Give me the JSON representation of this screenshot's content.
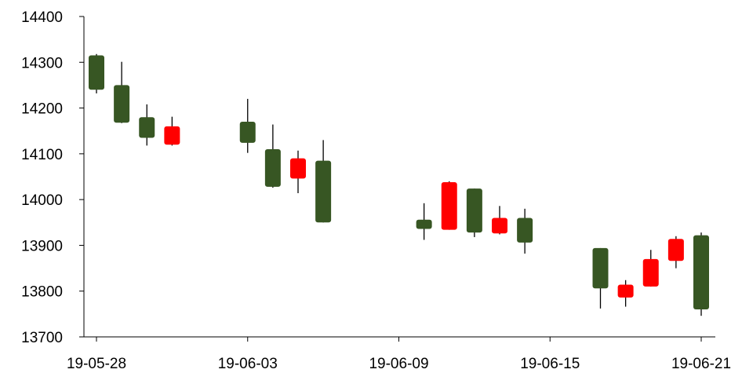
{
  "chart_data": {
    "type": "candlestick",
    "title": "",
    "xlabel": "",
    "ylabel": "",
    "ylim": [
      13700,
      14400
    ],
    "y_ticks": [
      "13700",
      "13800",
      "13900",
      "14000",
      "14100",
      "14200",
      "14300",
      "14400"
    ],
    "x_range": [
      "19-05-28",
      "19-06-21"
    ],
    "x_ticks": [
      "19-05-28",
      "19-06-03",
      "19-06-09",
      "19-06-15",
      "19-06-21"
    ],
    "grid": false,
    "colors": {
      "up": "#ff0000",
      "down": "#375623",
      "wick": "#000000",
      "axis": "#000000"
    },
    "candles": [
      {
        "date": "19-05-28",
        "open": 14315,
        "high": 14318,
        "low": 14232,
        "close": 14240
      },
      {
        "date": "19-05-29",
        "open": 14250,
        "high": 14301,
        "low": 14167,
        "close": 14168
      },
      {
        "date": "19-05-30",
        "open": 14180,
        "high": 14208,
        "low": 14118,
        "close": 14135
      },
      {
        "date": "19-05-31",
        "open": 14120,
        "high": 14181,
        "low": 14118,
        "close": 14160
      },
      {
        "date": "19-06-03",
        "open": 14170,
        "high": 14220,
        "low": 14102,
        "close": 14124
      },
      {
        "date": "19-06-04",
        "open": 14110,
        "high": 14164,
        "low": 14026,
        "close": 14028
      },
      {
        "date": "19-06-05",
        "open": 14046,
        "high": 14107,
        "low": 14014,
        "close": 14090
      },
      {
        "date": "19-06-06",
        "open": 14085,
        "high": 14130,
        "low": 13950,
        "close": 13950
      },
      {
        "date": "19-06-10",
        "open": 13956,
        "high": 13992,
        "low": 13912,
        "close": 13936
      },
      {
        "date": "19-06-11",
        "open": 13934,
        "high": 14040,
        "low": 13934,
        "close": 14038
      },
      {
        "date": "19-06-12",
        "open": 14024,
        "high": 14024,
        "low": 13918,
        "close": 13928
      },
      {
        "date": "19-06-13",
        "open": 13926,
        "high": 13986,
        "low": 13924,
        "close": 13960
      },
      {
        "date": "19-06-14",
        "open": 13960,
        "high": 13980,
        "low": 13882,
        "close": 13906
      },
      {
        "date": "19-06-17",
        "open": 13894,
        "high": 13894,
        "low": 13762,
        "close": 13806
      },
      {
        "date": "19-06-18",
        "open": 13786,
        "high": 13824,
        "low": 13766,
        "close": 13814
      },
      {
        "date": "19-06-19",
        "open": 13810,
        "high": 13890,
        "low": 13810,
        "close": 13870
      },
      {
        "date": "19-06-20",
        "open": 13866,
        "high": 13920,
        "low": 13850,
        "close": 13914
      },
      {
        "date": "19-06-21",
        "open": 13922,
        "high": 13928,
        "low": 13746,
        "close": 13760
      }
    ]
  }
}
